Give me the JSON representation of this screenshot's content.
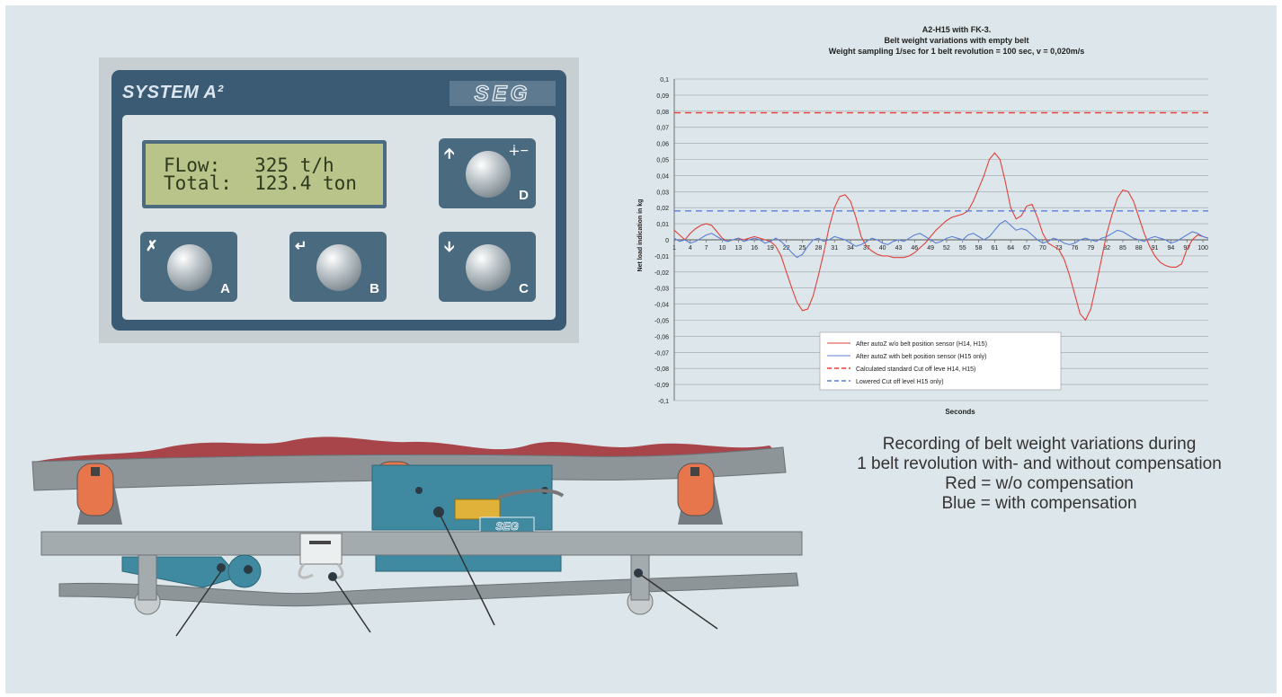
{
  "panel": {
    "title": "SYSTEM A²",
    "brand_logo_text": "SEG",
    "display_line1": "FLow:   325 t/h",
    "display_line2": "Total:  123.4 ton",
    "keys": [
      {
        "letter": "D",
        "icon": "arrow-up-icon",
        "icon2": "key-icon"
      },
      {
        "letter": "A",
        "icon": "tare-icon"
      },
      {
        "letter": "B",
        "icon": "enter-icon"
      },
      {
        "letter": "C",
        "icon": "arrow-down-icon"
      }
    ]
  },
  "chart_data": {
    "type": "line",
    "title_lines": [
      "A2-H15 with FK-3.",
      "Belt weight variations with empty belt",
      "Weight sampling 1/sec for 1 belt revolution = 100 sec, v = 0,020m/s"
    ],
    "xlabel": "Seconds",
    "ylabel": "Net load indication in kg",
    "ylim": [
      -0.1,
      0.1
    ],
    "yticks": [
      "0,1",
      "0,09",
      "0,08",
      "0,07",
      "0,06",
      "0,05",
      "0,04",
      "0,03",
      "0,02",
      "0,01",
      "0",
      "-0,01",
      "-0,02",
      "-0,03",
      "-0,04",
      "-0,05",
      "-0,06",
      "-0,07",
      "-0,08",
      "-0,09",
      "-0,1"
    ],
    "xticks": [
      "1",
      "4",
      "7",
      "10",
      "13",
      "16",
      "19",
      "22",
      "25",
      "28",
      "31",
      "34",
      "37",
      "40",
      "43",
      "46",
      "49",
      "52",
      "55",
      "58",
      "61",
      "64",
      "67",
      "70",
      "73",
      "76",
      "79",
      "82",
      "85",
      "88",
      "91",
      "94",
      "97",
      "100"
    ],
    "grid": true,
    "legend_position": "bottom-center",
    "series": [
      {
        "name": "After autoZ w/o belt position sensor (H14, H15)",
        "color": "#e0413a",
        "style": "solid",
        "points": [
          [
            1,
            0.006
          ],
          [
            2,
            0.003
          ],
          [
            3,
            0.0
          ],
          [
            4,
            0.004
          ],
          [
            5,
            0.007
          ],
          [
            6,
            0.009
          ],
          [
            7,
            0.01
          ],
          [
            8,
            0.009
          ],
          [
            9,
            0.005
          ],
          [
            10,
            0.001
          ],
          [
            11,
            -0.001
          ],
          [
            12,
            0.0
          ],
          [
            13,
            0.001
          ],
          [
            14,
            0.0
          ],
          [
            15,
            0.001
          ],
          [
            16,
            0.002
          ],
          [
            17,
            0.001
          ],
          [
            18,
            0.0
          ],
          [
            19,
            -0.001
          ],
          [
            20,
            -0.004
          ],
          [
            21,
            -0.01
          ],
          [
            22,
            -0.02
          ],
          [
            23,
            -0.03
          ],
          [
            24,
            -0.039
          ],
          [
            25,
            -0.044
          ],
          [
            26,
            -0.043
          ],
          [
            27,
            -0.035
          ],
          [
            28,
            -0.022
          ],
          [
            29,
            -0.008
          ],
          [
            30,
            0.008
          ],
          [
            31,
            0.02
          ],
          [
            32,
            0.027
          ],
          [
            33,
            0.028
          ],
          [
            34,
            0.024
          ],
          [
            35,
            0.014
          ],
          [
            36,
            0.002
          ],
          [
            37,
            -0.004
          ],
          [
            38,
            -0.007
          ],
          [
            39,
            -0.009
          ],
          [
            40,
            -0.01
          ],
          [
            41,
            -0.01
          ],
          [
            42,
            -0.011
          ],
          [
            43,
            -0.011
          ],
          [
            44,
            -0.011
          ],
          [
            45,
            -0.01
          ],
          [
            46,
            -0.008
          ],
          [
            47,
            -0.005
          ],
          [
            48,
            -0.002
          ],
          [
            49,
            0.002
          ],
          [
            50,
            0.006
          ],
          [
            51,
            0.009
          ],
          [
            52,
            0.012
          ],
          [
            53,
            0.014
          ],
          [
            54,
            0.015
          ],
          [
            55,
            0.016
          ],
          [
            56,
            0.018
          ],
          [
            57,
            0.024
          ],
          [
            58,
            0.032
          ],
          [
            59,
            0.04
          ],
          [
            60,
            0.05
          ],
          [
            61,
            0.054
          ],
          [
            62,
            0.05
          ],
          [
            63,
            0.036
          ],
          [
            64,
            0.02
          ],
          [
            65,
            0.013
          ],
          [
            66,
            0.015
          ],
          [
            67,
            0.021
          ],
          [
            68,
            0.022
          ],
          [
            69,
            0.014
          ],
          [
            70,
            0.004
          ],
          [
            71,
            -0.002
          ],
          [
            72,
            -0.004
          ],
          [
            73,
            -0.006
          ],
          [
            74,
            -0.012
          ],
          [
            75,
            -0.022
          ],
          [
            76,
            -0.034
          ],
          [
            77,
            -0.046
          ],
          [
            78,
            -0.05
          ],
          [
            79,
            -0.043
          ],
          [
            80,
            -0.028
          ],
          [
            81,
            -0.012
          ],
          [
            82,
            0.004
          ],
          [
            83,
            0.016
          ],
          [
            84,
            0.026
          ],
          [
            85,
            0.031
          ],
          [
            86,
            0.03
          ],
          [
            87,
            0.024
          ],
          [
            88,
            0.014
          ],
          [
            89,
            0.004
          ],
          [
            90,
            -0.004
          ],
          [
            91,
            -0.01
          ],
          [
            92,
            -0.014
          ],
          [
            93,
            -0.016
          ],
          [
            94,
            -0.017
          ],
          [
            95,
            -0.017
          ],
          [
            96,
            -0.015
          ],
          [
            97,
            -0.006
          ],
          [
            98,
            0.0
          ],
          [
            99,
            0.003
          ],
          [
            100,
            0.002
          ],
          [
            101,
            0.001
          ]
        ]
      },
      {
        "name": "After autoZ with belt position sensor (H15 only)",
        "color": "#5b7fd6",
        "style": "solid",
        "points": [
          [
            1,
            0.001
          ],
          [
            2,
            -0.001
          ],
          [
            3,
            0.0
          ],
          [
            4,
            -0.002
          ],
          [
            5,
            -0.001
          ],
          [
            6,
            0.001
          ],
          [
            7,
            0.003
          ],
          [
            8,
            0.004
          ],
          [
            9,
            0.002
          ],
          [
            10,
            0.0
          ],
          [
            11,
            -0.001
          ],
          [
            12,
            0.0
          ],
          [
            13,
            0.001
          ],
          [
            14,
            -0.001
          ],
          [
            15,
            0.0
          ],
          [
            16,
            0.001
          ],
          [
            17,
            0.0
          ],
          [
            18,
            -0.002
          ],
          [
            19,
            -0.001
          ],
          [
            20,
            0.001
          ],
          [
            21,
            -0.001
          ],
          [
            22,
            -0.004
          ],
          [
            23,
            -0.008
          ],
          [
            24,
            -0.011
          ],
          [
            25,
            -0.009
          ],
          [
            26,
            -0.004
          ],
          [
            27,
            0.0
          ],
          [
            28,
            0.001
          ],
          [
            29,
            -0.001
          ],
          [
            30,
            0.0
          ],
          [
            31,
            0.002
          ],
          [
            32,
            0.001
          ],
          [
            33,
            0.0
          ],
          [
            34,
            -0.002
          ],
          [
            35,
            -0.004
          ],
          [
            36,
            -0.003
          ],
          [
            37,
            -0.001
          ],
          [
            38,
            0.001
          ],
          [
            39,
            0.0
          ],
          [
            40,
            -0.002
          ],
          [
            41,
            -0.003
          ],
          [
            42,
            -0.001
          ],
          [
            43,
            0.0
          ],
          [
            44,
            -0.001
          ],
          [
            45,
            0.001
          ],
          [
            46,
            0.003
          ],
          [
            47,
            0.004
          ],
          [
            48,
            0.002
          ],
          [
            49,
            0.0
          ],
          [
            50,
            -0.002
          ],
          [
            51,
            -0.001
          ],
          [
            52,
            0.001
          ],
          [
            53,
            0.002
          ],
          [
            54,
            0.001
          ],
          [
            55,
            0.0
          ],
          [
            56,
            0.003
          ],
          [
            57,
            0.004
          ],
          [
            58,
            0.002
          ],
          [
            59,
            0.0
          ],
          [
            60,
            0.002
          ],
          [
            61,
            0.006
          ],
          [
            62,
            0.01
          ],
          [
            63,
            0.012
          ],
          [
            64,
            0.009
          ],
          [
            65,
            0.006
          ],
          [
            66,
            0.007
          ],
          [
            67,
            0.006
          ],
          [
            68,
            0.003
          ],
          [
            69,
            0.0
          ],
          [
            70,
            -0.002
          ],
          [
            71,
            -0.001
          ],
          [
            72,
            0.001
          ],
          [
            73,
            0.0
          ],
          [
            74,
            -0.002
          ],
          [
            75,
            -0.003
          ],
          [
            76,
            -0.002
          ],
          [
            77,
            0.0
          ],
          [
            78,
            0.001
          ],
          [
            79,
            0.0
          ],
          [
            80,
            -0.001
          ],
          [
            81,
            0.001
          ],
          [
            82,
            0.002
          ],
          [
            83,
            0.004
          ],
          [
            84,
            0.006
          ],
          [
            85,
            0.005
          ],
          [
            86,
            0.003
          ],
          [
            87,
            0.001
          ],
          [
            88,
            0.0
          ],
          [
            89,
            -0.001
          ],
          [
            90,
            0.001
          ],
          [
            91,
            0.002
          ],
          [
            92,
            0.001
          ],
          [
            93,
            0.0
          ],
          [
            94,
            -0.002
          ],
          [
            95,
            -0.001
          ],
          [
            96,
            0.001
          ],
          [
            97,
            0.003
          ],
          [
            98,
            0.005
          ],
          [
            99,
            0.004
          ],
          [
            100,
            0.002
          ],
          [
            101,
            0.001
          ]
        ]
      },
      {
        "name": "Calculated standard Cut off leve H14, H15)",
        "color": "#e0413a",
        "style": "dashed",
        "constant": 0.079
      },
      {
        "name": "Lowered Cut off level H15 only)",
        "color": "#5b7fd6",
        "style": "dashed",
        "constant": 0.018
      }
    ]
  },
  "caption": {
    "line1": "Recording of belt weight variations during",
    "line2": "1 belt revolution with- and without compensation",
    "line3": "Red = w/o compensation",
    "line4": "Blue = with compensation"
  },
  "colors": {
    "background": "#dde6ea",
    "panel_blue": "#3b5a73",
    "lcd_green": "#b9c48a",
    "belt_grey": "#8e9599",
    "load_red": "#a8454a",
    "roller_orange": "#e8764c",
    "frame_teal": "#3f8aa1"
  }
}
